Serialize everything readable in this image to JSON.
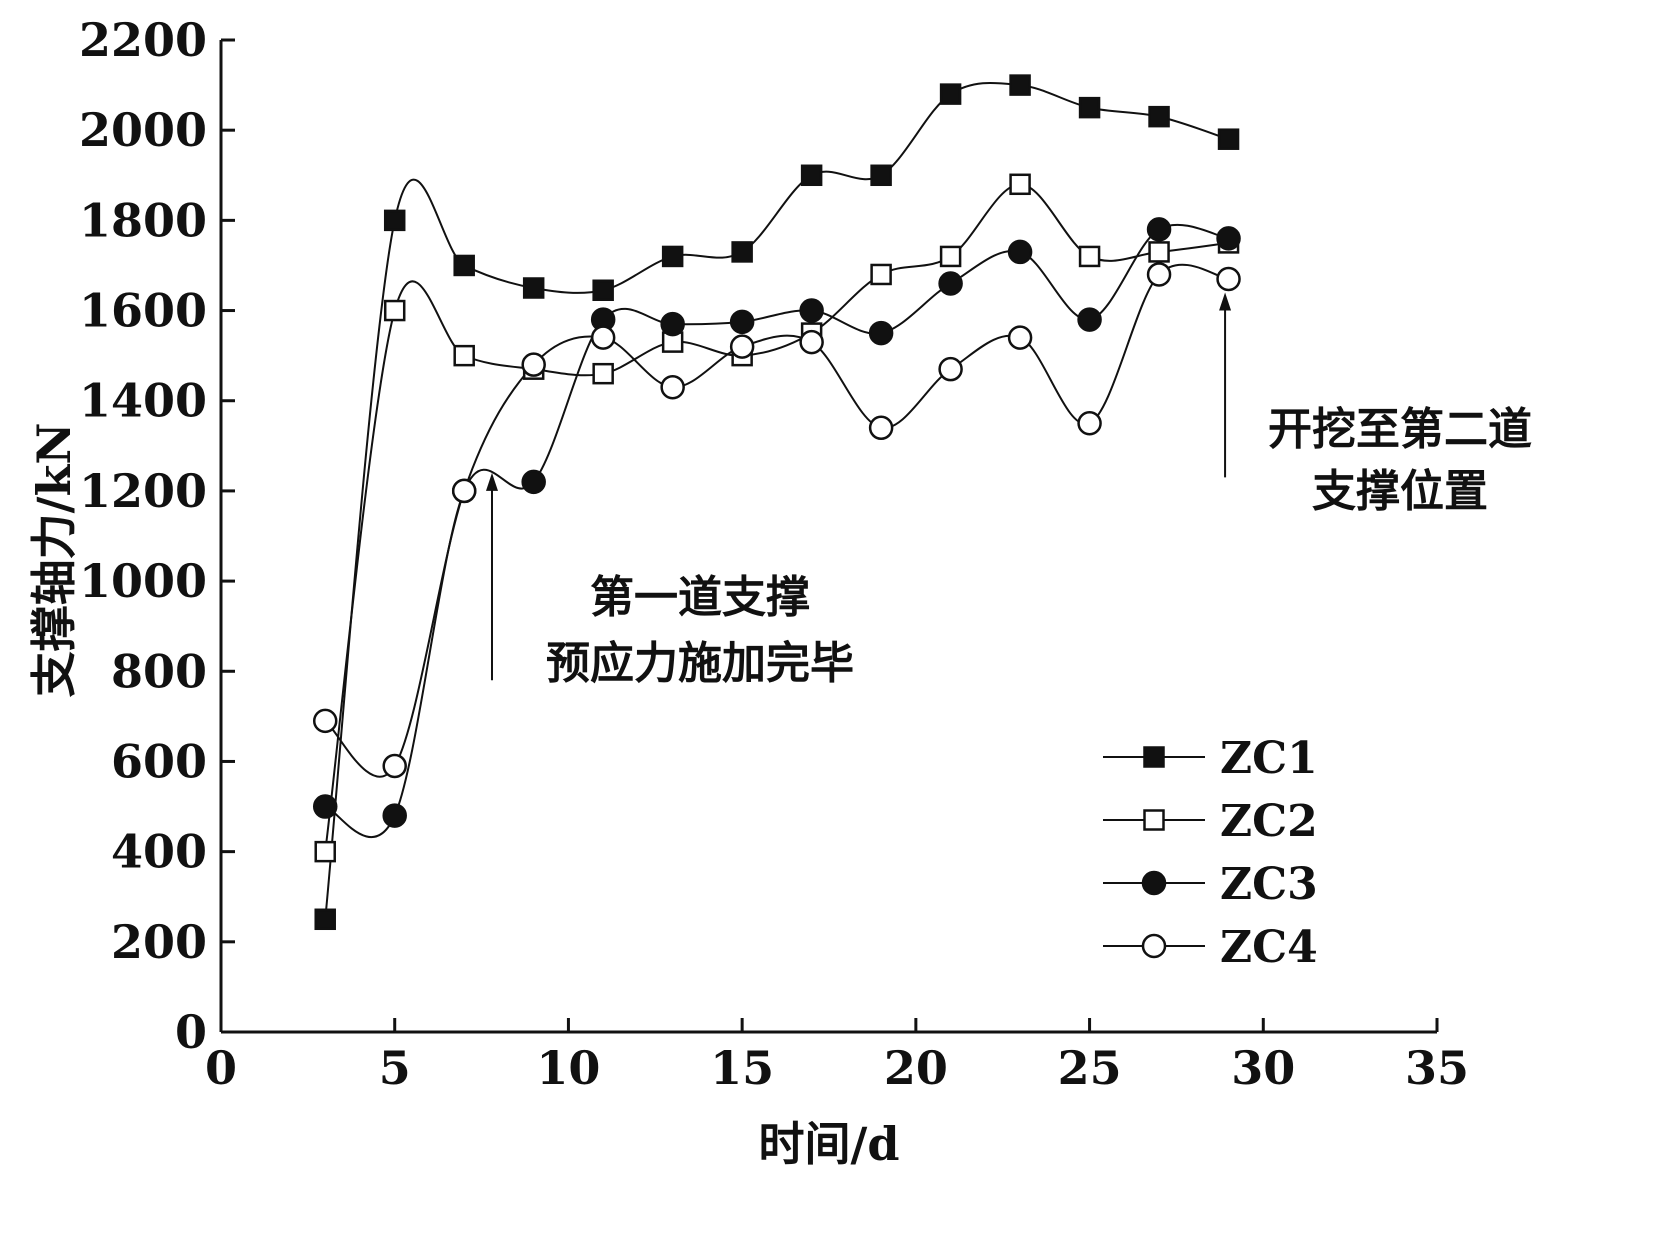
{
  "chart_data": {
    "type": "line",
    "xlabel": "时间/d",
    "ylabel": "支撑轴力/kN",
    "xlim": [
      0,
      35
    ],
    "ylim": [
      0,
      2200
    ],
    "xticks": [
      0,
      5,
      10,
      15,
      20,
      25,
      30,
      35
    ],
    "yticks": [
      0,
      200,
      400,
      600,
      800,
      1000,
      1200,
      1400,
      1600,
      1800,
      2000,
      2200
    ],
    "grid": false,
    "legend_position": "bottom-right",
    "x": [
      3,
      5,
      7,
      9,
      11,
      13,
      15,
      17,
      19,
      21,
      23,
      25,
      27,
      29
    ],
    "series": [
      {
        "name": "ZC1",
        "marker": "filled-square",
        "values": [
          250,
          1800,
          1700,
          1650,
          1645,
          1720,
          1730,
          1900,
          1900,
          2080,
          2100,
          2050,
          2030,
          1980
        ]
      },
      {
        "name": "ZC2",
        "marker": "open-square",
        "values": [
          400,
          1600,
          1500,
          1470,
          1460,
          1530,
          1500,
          1550,
          1680,
          1720,
          1880,
          1720,
          1730,
          1750
        ]
      },
      {
        "name": "ZC3",
        "marker": "filled-circle",
        "values": [
          500,
          480,
          1200,
          1220,
          1580,
          1570,
          1575,
          1600,
          1550,
          1660,
          1730,
          1580,
          1780,
          1760
        ]
      },
      {
        "name": "ZC4",
        "marker": "open-circle",
        "values": [
          690,
          590,
          1200,
          1480,
          1540,
          1430,
          1520,
          1530,
          1340,
          1470,
          1540,
          1350,
          1680,
          1670
        ]
      }
    ],
    "annotations": [
      {
        "lines": [
          "第一道支撑",
          "预应力施加完毕"
        ],
        "arrow_x": 7.8,
        "arrow_from_y": 780,
        "arrow_to_y": 1240
      },
      {
        "lines": [
          "开挖至第二道",
          "支撑位置"
        ],
        "arrow_x": 28.9,
        "arrow_from_y": 1230,
        "arrow_to_y": 1640
      }
    ]
  }
}
